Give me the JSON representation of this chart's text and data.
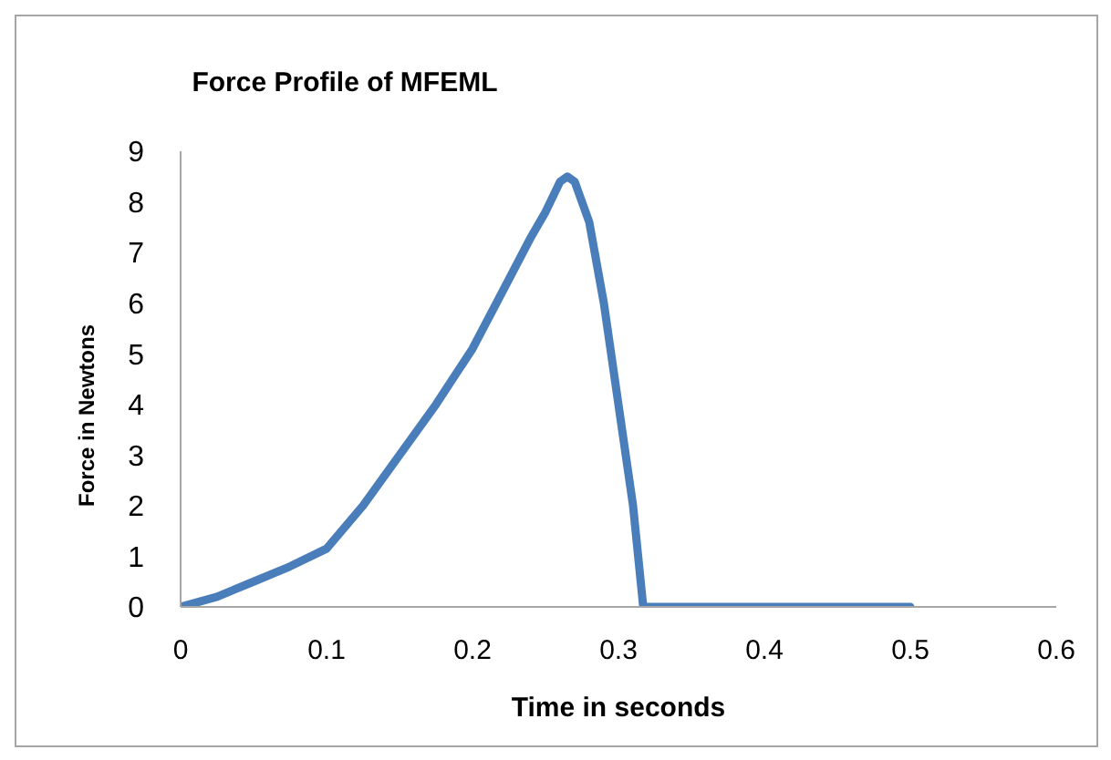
{
  "chart_data": {
    "type": "line",
    "title": "Force Profile of MFEML",
    "xlabel": "Time in seconds",
    "ylabel": "Force in Newtons",
    "x": [
      0,
      0.025,
      0.05,
      0.075,
      0.1,
      0.125,
      0.15,
      0.175,
      0.2,
      0.22,
      0.24,
      0.25,
      0.26,
      0.265,
      0.27,
      0.28,
      0.29,
      0.3,
      0.31,
      0.317,
      0.5
    ],
    "series": [
      {
        "color": "#4a7ebb",
        "values": [
          0,
          0.2,
          0.5,
          0.8,
          1.15,
          2.0,
          3.0,
          4.0,
          5.1,
          6.2,
          7.3,
          7.8,
          8.4,
          8.5,
          8.4,
          7.6,
          6.0,
          4.0,
          2.0,
          0,
          0
        ]
      }
    ],
    "xlim": [
      0,
      0.6
    ],
    "xticks": [
      0,
      0.1,
      0.2,
      0.3,
      0.4,
      0.5,
      0.6
    ],
    "ylim": [
      0,
      9
    ],
    "yticks": [
      0,
      1,
      2,
      3,
      4,
      5,
      6,
      7,
      8,
      9
    ],
    "grid": false,
    "legend": false,
    "marker": "none",
    "line_style": "solid"
  }
}
